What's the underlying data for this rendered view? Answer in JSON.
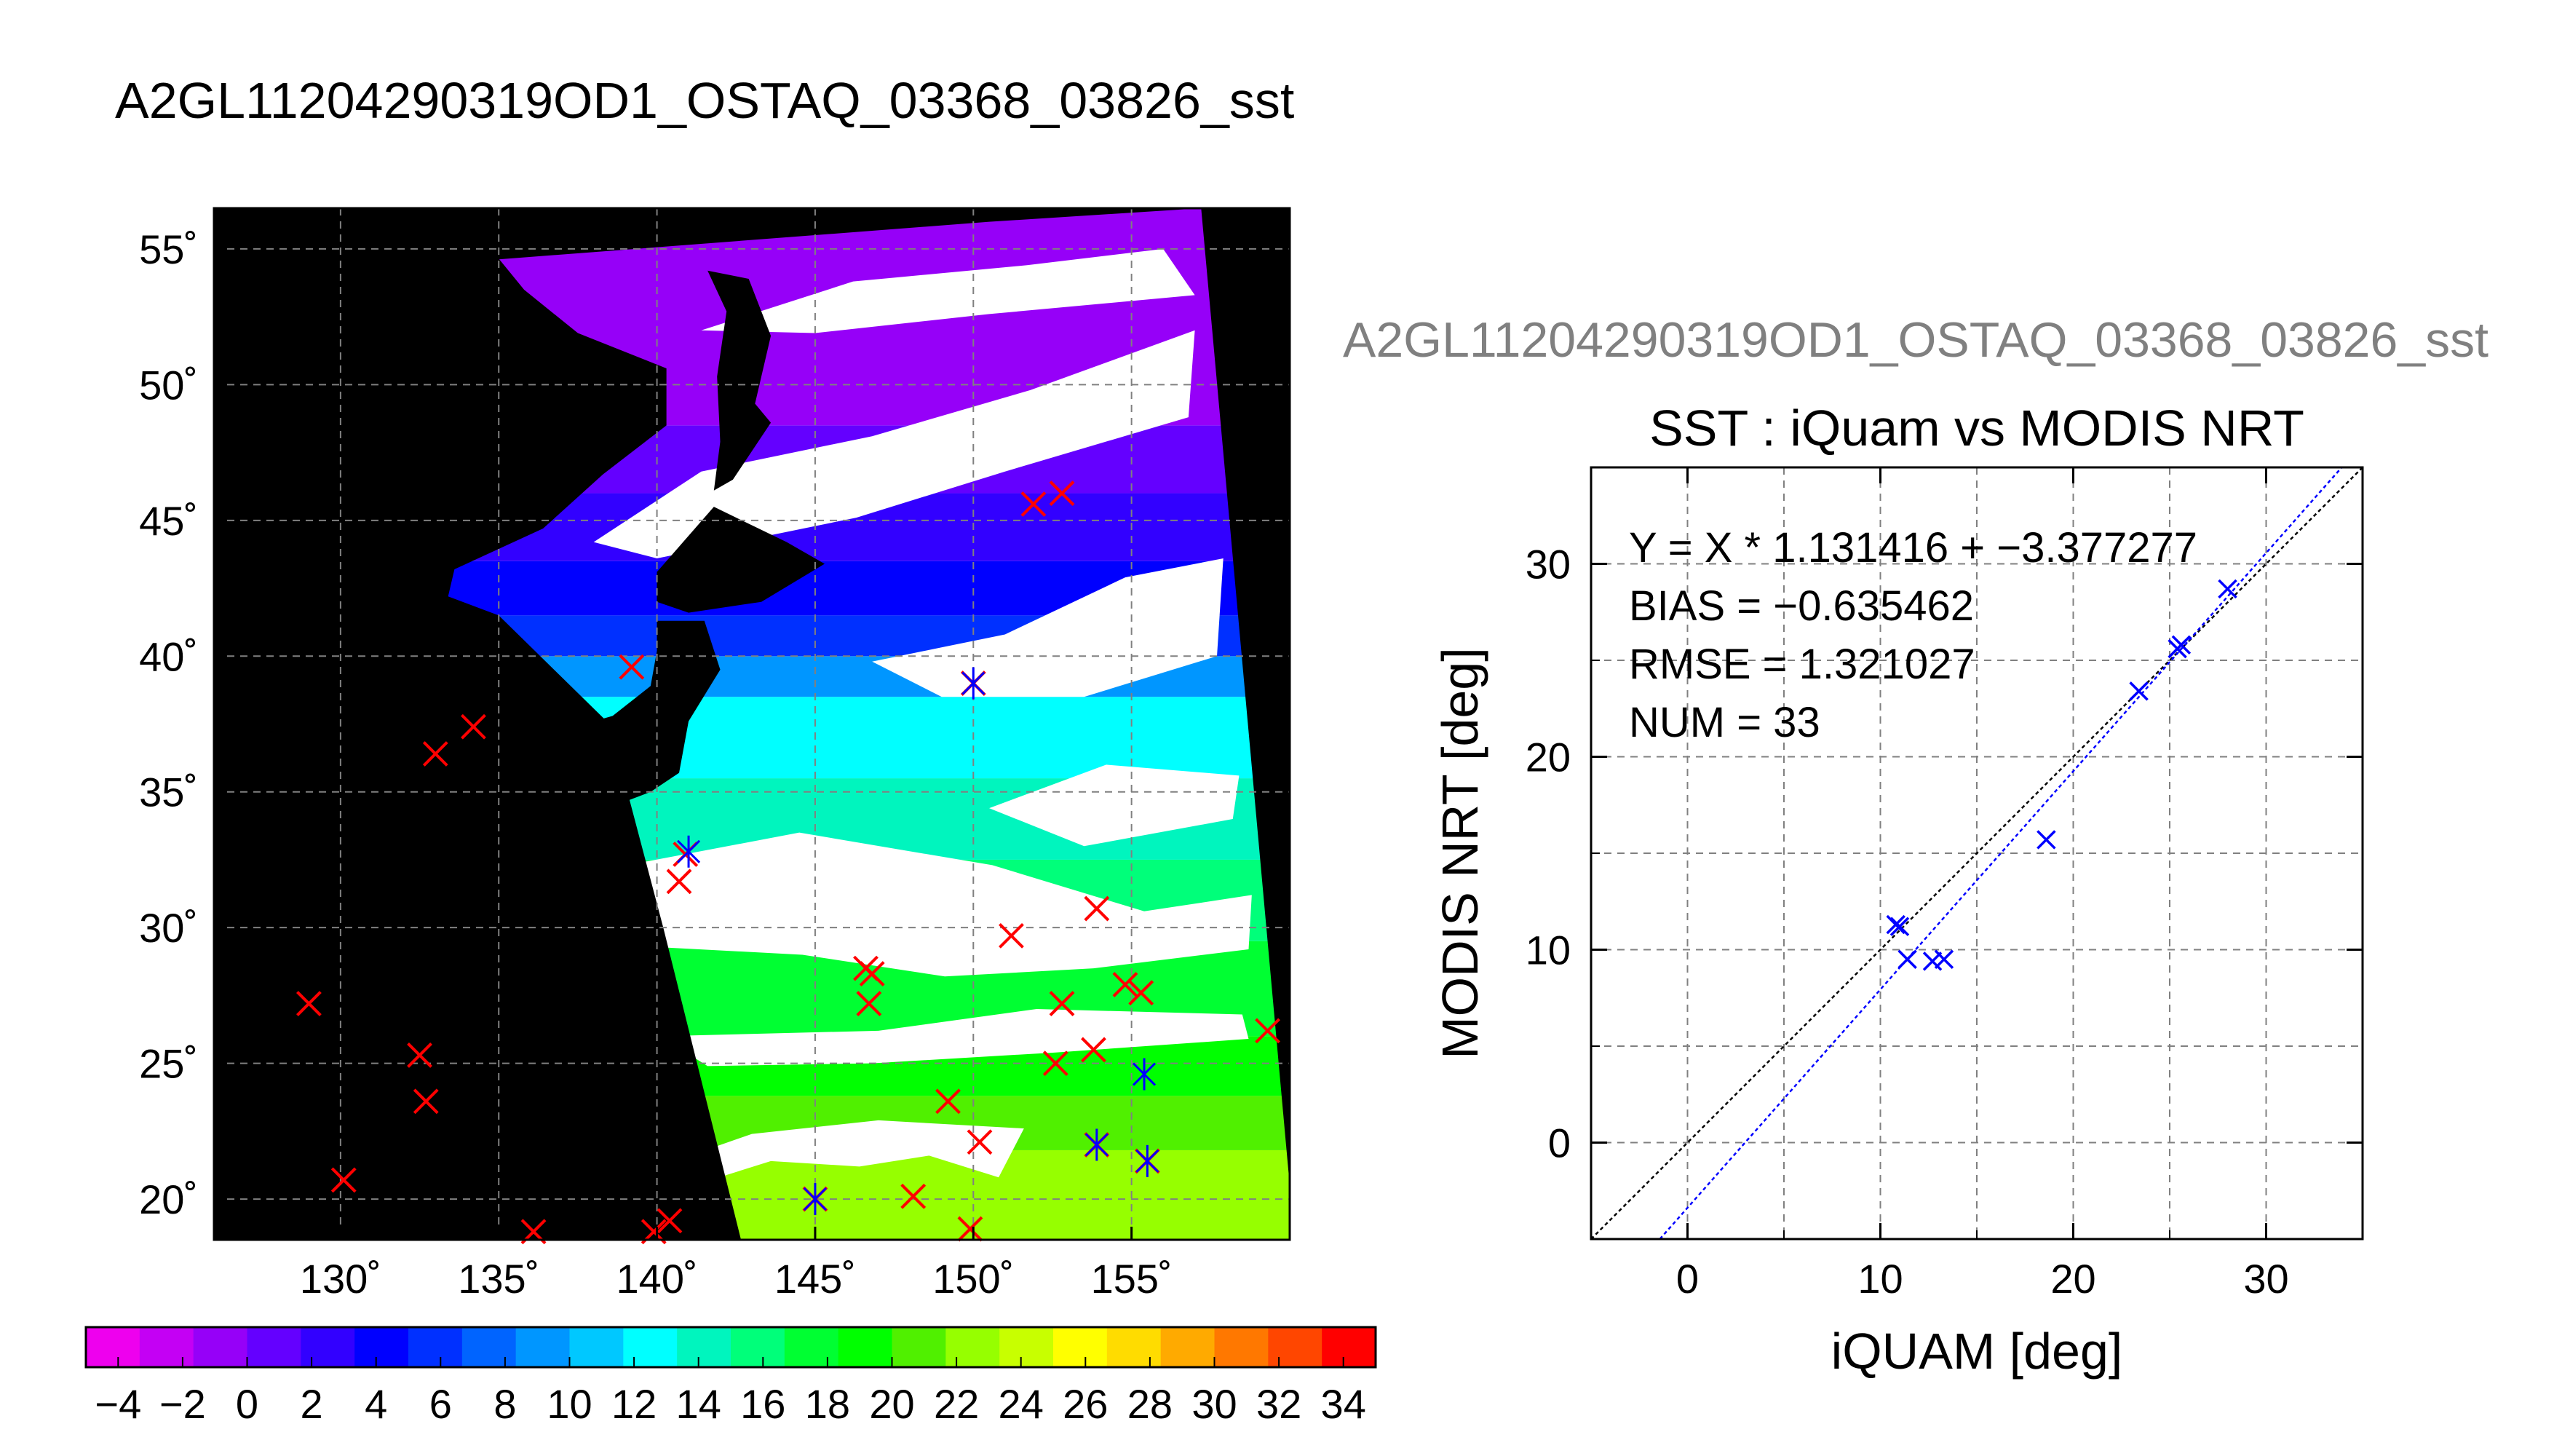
{
  "title": "A2GL11204290319OD1_OSTAQ_03368_03826_sst",
  "scatter_overtitle": "A2GL11204290319OD1_OSTAQ_03368_03826_sst",
  "colors": {
    "land": "#000000",
    "cloud": "#ffffff",
    "marker_red": "#ff0000",
    "marker_blue": "#0000ff",
    "fit_line": "#0000ff",
    "one_to_one": "#000000",
    "grid": "#808080"
  },
  "chart_data": [
    {
      "type": "map",
      "panel": "sst-map",
      "lon_range": [
        126,
        160
      ],
      "lat_range": [
        18.5,
        56.5
      ],
      "lon_ticks": [
        130,
        135,
        140,
        145,
        150,
        155
      ],
      "lon_tick_labels": [
        "130˚",
        "135˚",
        "140˚",
        "145˚",
        "150˚",
        "155˚"
      ],
      "lat_ticks": [
        20,
        25,
        30,
        35,
        40,
        45,
        50,
        55
      ],
      "lat_tick_labels": [
        "20˚",
        "25˚",
        "30˚",
        "35˚",
        "40˚",
        "45˚",
        "50˚",
        "55˚"
      ],
      "grid": true,
      "iquam_points_red": [
        [
          129,
          27.2
        ],
        [
          130.1,
          20.7
        ],
        [
          132.5,
          25.3
        ],
        [
          132.7,
          23.6
        ],
        [
          133,
          36.4
        ],
        [
          134.2,
          37.4
        ],
        [
          136.1,
          18.8
        ],
        [
          139.2,
          39.6
        ],
        [
          139.9,
          18.8
        ],
        [
          140.4,
          19.2
        ],
        [
          140.7,
          31.7
        ],
        [
          140.9,
          32.7
        ],
        [
          146.6,
          28.5
        ],
        [
          146.8,
          28.3
        ],
        [
          146.7,
          27.2
        ],
        [
          148.1,
          20.1
        ],
        [
          149.2,
          23.6
        ],
        [
          149.9,
          18.9
        ],
        [
          150.2,
          22.1
        ],
        [
          151.2,
          29.7
        ],
        [
          151.9,
          45.6
        ],
        [
          152.8,
          46
        ],
        [
          152.6,
          25
        ],
        [
          152.8,
          27.2
        ],
        [
          153.8,
          25.5
        ],
        [
          153.9,
          30.7
        ],
        [
          154.8,
          27.9
        ],
        [
          155.3,
          27.6
        ],
        [
          159.3,
          26.2
        ],
        [
          145,
          20
        ],
        [
          153.9,
          22
        ],
        [
          155.5,
          21.4
        ],
        [
          150,
          39
        ]
      ],
      "matchup_points_blue": [
        [
          141,
          32.8
        ],
        [
          150,
          39
        ],
        [
          145,
          20
        ],
        [
          153.9,
          22
        ],
        [
          155.5,
          21.4
        ],
        [
          155.4,
          24.6
        ]
      ],
      "colorbar": {
        "min": -5,
        "max": 35,
        "step": 2,
        "tick_values": [
          -4,
          -2,
          0,
          2,
          4,
          6,
          8,
          10,
          12,
          14,
          16,
          18,
          20,
          22,
          24,
          26,
          28,
          30,
          32,
          34
        ],
        "tick_labels": [
          "−4",
          "−2",
          "0",
          "2",
          "4",
          "6",
          "8",
          "10",
          "12",
          "14",
          "16",
          "18",
          "20",
          "22",
          "24",
          "26",
          "28",
          "30",
          "32",
          "34"
        ],
        "colors": [
          "#ee00ee",
          "#c400f4",
          "#9600f8",
          "#6400ff",
          "#3200ff",
          "#0000ff",
          "#0030ff",
          "#0064ff",
          "#0096ff",
          "#00c8ff",
          "#00ffff",
          "#00f5be",
          "#00ff7a",
          "#00ff32",
          "#00ff00",
          "#50f000",
          "#96ff00",
          "#c8ff00",
          "#ffff00",
          "#ffdc00",
          "#ffaa00",
          "#ff7800",
          "#ff4600",
          "#ff0000"
        ]
      }
    },
    {
      "type": "scatter",
      "panel": "iquam-vs-modis",
      "title": "SST : iQuam vs MODIS NRT",
      "xlabel": "iQUAM [deg]",
      "ylabel": "MODIS NRT [deg]",
      "xlim": [
        -5,
        35
      ],
      "ylim": [
        -5,
        35
      ],
      "x_tick_labels": [
        "0",
        "10",
        "20",
        "30"
      ],
      "y_tick_labels": [
        "0",
        "10",
        "20",
        "30"
      ],
      "grid": true,
      "stats": [
        "Y = X * 1.131416 + −3.377277",
        "BIAS = −0.635462",
        "RMSE = 1.321027",
        "NUM = 33"
      ],
      "fit": {
        "slope": 1.131416,
        "intercept": -3.377277
      },
      "points": [
        [
          10.8,
          11.3
        ],
        [
          11.0,
          11.2
        ],
        [
          11.4,
          9.5
        ],
        [
          12.7,
          9.4
        ],
        [
          13.3,
          9.5
        ],
        [
          18.6,
          15.7
        ],
        [
          23.4,
          23.4
        ],
        [
          25.4,
          25.6
        ],
        [
          25.6,
          25.8
        ],
        [
          28.0,
          28.7
        ]
      ]
    }
  ]
}
